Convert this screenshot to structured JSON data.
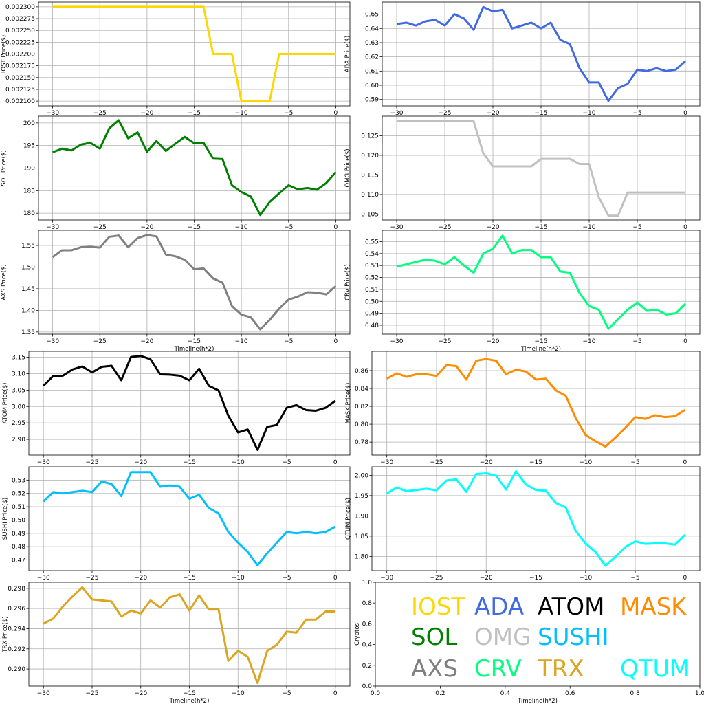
{
  "chart_data": [
    {
      "type": "line",
      "ylabel": "IOST Price($)",
      "xlabel": "",
      "color": "#ffd700",
      "xlim": [
        -31.5,
        1.5
      ],
      "ylim": [
        0.00209,
        0.00231
      ],
      "yticks": [
        0.0021,
        0.002125,
        0.00215,
        0.002175,
        0.0022,
        0.002225,
        0.00225,
        0.002275,
        0.0023
      ],
      "ytick_decimals": 6,
      "x": [
        -30,
        -29,
        -28,
        -27,
        -26,
        -25,
        -24,
        -23,
        -22,
        -21,
        -20,
        -19,
        -18,
        -17,
        -16,
        -15,
        -14,
        -13,
        -12,
        -11,
        -10,
        -9,
        -8,
        -7,
        -6,
        -5,
        -4,
        -3,
        -2,
        -1,
        0
      ],
      "values": [
        0.0023,
        0.0023,
        0.0023,
        0.0023,
        0.0023,
        0.0023,
        0.0023,
        0.0023,
        0.0023,
        0.0023,
        0.0023,
        0.0023,
        0.0023,
        0.0023,
        0.0023,
        0.0023,
        0.0023,
        0.0022,
        0.0022,
        0.0022,
        0.0021,
        0.0021,
        0.0021,
        0.0021,
        0.0022,
        0.0022,
        0.0022,
        0.0022,
        0.0022,
        0.0022,
        0.0022
      ]
    },
    {
      "type": "line",
      "ylabel": "ADA Price($)",
      "xlabel": "",
      "color": "#4169e1",
      "xlim": [
        -31.5,
        1.5
      ],
      "ylim": [
        0.5855,
        0.6585
      ],
      "yticks": [
        0.59,
        0.6,
        0.61,
        0.62,
        0.63,
        0.64,
        0.65
      ],
      "ytick_decimals": 2,
      "x": [
        -30,
        -29,
        -28,
        -27,
        -26,
        -25,
        -24,
        -23,
        -22,
        -21,
        -20,
        -19,
        -18,
        -17,
        -16,
        -15,
        -14,
        -13,
        -12,
        -11,
        -10,
        -9,
        -8,
        -7,
        -6,
        -5,
        -4,
        -3,
        -2,
        -1,
        0
      ],
      "values": [
        0.643,
        0.644,
        0.642,
        0.645,
        0.646,
        0.642,
        0.65,
        0.647,
        0.639,
        0.655,
        0.652,
        0.653,
        0.64,
        0.642,
        0.644,
        0.64,
        0.644,
        0.632,
        0.629,
        0.612,
        0.602,
        0.602,
        0.589,
        0.598,
        0.601,
        0.611,
        0.61,
        0.612,
        0.61,
        0.611,
        0.617
      ]
    },
    {
      "type": "line",
      "ylabel": "SOL Price($)",
      "xlabel": "",
      "color": "#008000",
      "xlim": [
        -31.5,
        1.5
      ],
      "ylim": [
        178.5,
        201.5
      ],
      "yticks": [
        180,
        185,
        190,
        195,
        200
      ],
      "ytick_decimals": 0,
      "x": [
        -30,
        -29,
        -28,
        -27,
        -26,
        -25,
        -24,
        -23,
        -22,
        -21,
        -20,
        -19,
        -18,
        -17,
        -16,
        -15,
        -14,
        -13,
        -12,
        -11,
        -10,
        -9,
        -8,
        -7,
        -6,
        -5,
        -4,
        -3,
        -2,
        -1,
        0
      ],
      "values": [
        193.5,
        194.3,
        193.9,
        195.2,
        195.6,
        194.3,
        198.8,
        200.6,
        196.6,
        197.9,
        193.6,
        196.0,
        193.8,
        195.4,
        196.9,
        195.5,
        195.6,
        192.1,
        192.0,
        186.2,
        184.7,
        183.7,
        179.6,
        182.5,
        184.4,
        186.2,
        185.3,
        185.6,
        185.2,
        186.7,
        189.1
      ]
    },
    {
      "type": "line",
      "ylabel": "OMG Price($)",
      "xlabel": "",
      "color": "#c0c0c0",
      "xlim": [
        -31.5,
        1.5
      ],
      "ylim": [
        0.1035,
        0.13
      ],
      "yticks": [
        0.105,
        0.11,
        0.115,
        0.12,
        0.125
      ],
      "ytick_decimals": 3,
      "x": [
        -30,
        -29,
        -28,
        -27,
        -26,
        -25,
        -24,
        -23,
        -22,
        -21,
        -20,
        -19,
        -18,
        -17,
        -16,
        -15,
        -14,
        -13,
        -12,
        -11,
        -10,
        -9,
        -8,
        -7,
        -6,
        -5,
        -4,
        -3,
        -2,
        -1,
        0
      ],
      "values": [
        0.1287,
        0.1287,
        0.1287,
        0.1287,
        0.1287,
        0.1287,
        0.1287,
        0.1287,
        0.1287,
        0.1205,
        0.1172,
        0.1172,
        0.1172,
        0.1172,
        0.1172,
        0.1191,
        0.1191,
        0.1191,
        0.1191,
        0.1178,
        0.1178,
        0.1093,
        0.1046,
        0.1046,
        0.1105,
        0.1105,
        0.1105,
        0.1105,
        0.1105,
        0.1105,
        0.1105
      ]
    },
    {
      "type": "line",
      "ylabel": "AXS Price($)",
      "xlabel": "Timeline(h*2)",
      "color": "#808080",
      "xlim": [
        -31.5,
        1.5
      ],
      "ylim": [
        1.345,
        1.585
      ],
      "yticks": [
        1.35,
        1.4,
        1.45,
        1.5,
        1.55
      ],
      "ytick_decimals": 2,
      "x": [
        -30,
        -29,
        -28,
        -27,
        -26,
        -25,
        -24,
        -23,
        -22,
        -21,
        -20,
        -19,
        -18,
        -17,
        -16,
        -15,
        -14,
        -13,
        -12,
        -11,
        -10,
        -9,
        -8,
        -7,
        -6,
        -5,
        -4,
        -3,
        -2,
        -1,
        0
      ],
      "values": [
        1.523,
        1.539,
        1.539,
        1.546,
        1.547,
        1.545,
        1.57,
        1.573,
        1.546,
        1.567,
        1.574,
        1.571,
        1.529,
        1.525,
        1.517,
        1.495,
        1.497,
        1.474,
        1.464,
        1.41,
        1.39,
        1.384,
        1.356,
        1.378,
        1.404,
        1.425,
        1.432,
        1.442,
        1.441,
        1.437,
        1.456
      ]
    },
    {
      "type": "line",
      "ylabel": "CRV Price($)",
      "xlabel": "Timeline(h*2)",
      "color": "#00ff7f",
      "xlim": [
        -31.5,
        1.5
      ],
      "ylim": [
        0.4725,
        0.5595
      ],
      "yticks": [
        0.48,
        0.49,
        0.5,
        0.51,
        0.52,
        0.53,
        0.54,
        0.55
      ],
      "ytick_decimals": 2,
      "x": [
        -30,
        -29,
        -28,
        -27,
        -26,
        -25,
        -24,
        -23,
        -22,
        -21,
        -20,
        -19,
        -18,
        -17,
        -16,
        -15,
        -14,
        -13,
        -12,
        -11,
        -10,
        -9,
        -8,
        -7,
        -6,
        -5,
        -4,
        -3,
        -2,
        -1,
        0
      ],
      "values": [
        0.529,
        0.531,
        0.533,
        0.535,
        0.534,
        0.531,
        0.537,
        0.53,
        0.524,
        0.54,
        0.544,
        0.555,
        0.54,
        0.543,
        0.543,
        0.537,
        0.537,
        0.525,
        0.524,
        0.507,
        0.496,
        0.493,
        0.477,
        0.485,
        0.493,
        0.499,
        0.492,
        0.493,
        0.489,
        0.49,
        0.498
      ]
    },
    {
      "type": "line",
      "ylabel": "ATOM  Price($)",
      "xlabel": "",
      "color": "#000000",
      "xlim": [
        -31.5,
        1.5
      ],
      "ylim": [
        2.852,
        3.168
      ],
      "yticks": [
        2.9,
        2.95,
        3.0,
        3.05,
        3.1,
        3.15
      ],
      "ytick_decimals": 2,
      "x": [
        -30,
        -29,
        -28,
        -27,
        -26,
        -25,
        -24,
        -23,
        -22,
        -21,
        -20,
        -19,
        -18,
        -17,
        -16,
        -15,
        -14,
        -13,
        -12,
        -11,
        -10,
        -9,
        -8,
        -7,
        -6,
        -5,
        -4,
        -3,
        -2,
        -1,
        0
      ],
      "values": [
        3.063,
        3.093,
        3.094,
        3.113,
        3.122,
        3.104,
        3.121,
        3.124,
        3.08,
        3.151,
        3.154,
        3.144,
        3.098,
        3.097,
        3.094,
        3.08,
        3.115,
        3.063,
        3.049,
        2.972,
        2.921,
        2.93,
        2.868,
        2.938,
        2.944,
        2.996,
        3.004,
        2.989,
        2.987,
        2.996,
        3.017
      ]
    },
    {
      "type": "line",
      "ylabel": "MASK  Price($)",
      "xlabel": "",
      "color": "#ff8c00",
      "xlim": [
        -31.5,
        1.5
      ],
      "ylim": [
        0.7655,
        0.8815
      ],
      "yticks": [
        0.78,
        0.8,
        0.82,
        0.84,
        0.86
      ],
      "ytick_decimals": 2,
      "x": [
        -30,
        -29,
        -28,
        -27,
        -26,
        -25,
        -24,
        -23,
        -22,
        -21,
        -20,
        -19,
        -18,
        -17,
        -16,
        -15,
        -14,
        -13,
        -12,
        -11,
        -10,
        -9,
        -8,
        -7,
        -6,
        -5,
        -4,
        -3,
        -2,
        -1,
        0
      ],
      "values": [
        0.851,
        0.857,
        0.853,
        0.856,
        0.856,
        0.854,
        0.866,
        0.865,
        0.85,
        0.871,
        0.873,
        0.871,
        0.856,
        0.861,
        0.859,
        0.85,
        0.851,
        0.838,
        0.832,
        0.807,
        0.788,
        0.781,
        0.775,
        0.785,
        0.796,
        0.808,
        0.806,
        0.81,
        0.808,
        0.809,
        0.816
      ]
    },
    {
      "type": "line",
      "ylabel": "SUSHI  Price($)",
      "xlabel": "",
      "color": "#00bfff",
      "xlim": [
        -31.5,
        1.5
      ],
      "ylim": [
        0.462,
        0.54
      ],
      "yticks": [
        0.47,
        0.48,
        0.49,
        0.5,
        0.51,
        0.52,
        0.53
      ],
      "ytick_decimals": 2,
      "x": [
        -30,
        -29,
        -28,
        -27,
        -26,
        -25,
        -24,
        -23,
        -22,
        -21,
        -20,
        -19,
        -18,
        -17,
        -16,
        -15,
        -14,
        -13,
        -12,
        -11,
        -10,
        -9,
        -8,
        -7,
        -6,
        -5,
        -4,
        -3,
        -2,
        -1,
        0
      ],
      "values": [
        0.514,
        0.521,
        0.52,
        0.521,
        0.522,
        0.521,
        0.529,
        0.527,
        0.518,
        0.536,
        0.536,
        0.536,
        0.525,
        0.526,
        0.525,
        0.516,
        0.519,
        0.509,
        0.505,
        0.491,
        0.483,
        0.476,
        0.466,
        0.475,
        0.483,
        0.491,
        0.49,
        0.491,
        0.49,
        0.491,
        0.495
      ]
    },
    {
      "type": "line",
      "ylabel": "QTUM Price($)",
      "xlabel": "",
      "color": "#00ffff",
      "xlim": [
        -31.5,
        1.5
      ],
      "ylim": [
        1.765,
        2.021
      ],
      "yticks": [
        1.8,
        1.85,
        1.9,
        1.95,
        2.0
      ],
      "ytick_decimals": 2,
      "x": [
        -30,
        -29,
        -28,
        -27,
        -26,
        -25,
        -24,
        -23,
        -22,
        -21,
        -20,
        -19,
        -18,
        -17,
        -16,
        -15,
        -14,
        -13,
        -12,
        -11,
        -10,
        -9,
        -8,
        -7,
        -6,
        -5,
        -4,
        -3,
        -2,
        -1,
        0
      ],
      "values": [
        1.955,
        1.97,
        1.961,
        1.964,
        1.967,
        1.963,
        1.987,
        1.99,
        1.959,
        2.003,
        2.005,
        1.999,
        1.965,
        2.01,
        1.977,
        1.964,
        1.962,
        1.932,
        1.921,
        1.863,
        1.832,
        1.811,
        1.777,
        1.799,
        1.823,
        1.837,
        1.831,
        1.832,
        1.832,
        1.829,
        1.853
      ]
    },
    {
      "type": "line",
      "ylabel": "TRX Price($)",
      "xlabel": "Timeline(h*2)",
      "color": "#daa520",
      "xlim": [
        -31.5,
        1.5
      ],
      "ylim": [
        0.2883,
        0.2986
      ],
      "yticks": [
        0.29,
        0.292,
        0.294,
        0.296,
        0.298
      ],
      "ytick_decimals": 3,
      "x": [
        -30,
        -29,
        -28,
        -27,
        -26,
        -25,
        -24,
        -23,
        -22,
        -21,
        -20,
        -19,
        -18,
        -17,
        -16,
        -15,
        -14,
        -13,
        -12,
        -11,
        -10,
        -9,
        -8,
        -7,
        -6,
        -5,
        -4,
        -3,
        -2,
        -1,
        0
      ],
      "values": [
        0.2945,
        0.295,
        0.2962,
        0.2972,
        0.2981,
        0.2969,
        0.2968,
        0.2967,
        0.2952,
        0.2958,
        0.2955,
        0.2968,
        0.2961,
        0.2971,
        0.2974,
        0.2958,
        0.2973,
        0.2959,
        0.2959,
        0.2908,
        0.2918,
        0.2912,
        0.2886,
        0.2918,
        0.2924,
        0.2937,
        0.2936,
        0.2949,
        0.2949,
        0.2957,
        0.2957
      ]
    },
    {
      "type": "table",
      "ylabel": "Cryptos",
      "xlabel": "Timeline(h*2)",
      "xlim": [
        0,
        1
      ],
      "ylim": [
        0,
        1
      ],
      "xticks": [
        0.0,
        0.2,
        0.4,
        0.6,
        0.8,
        1.0
      ],
      "yticks": [
        0.0,
        0.2,
        0.4,
        0.6,
        0.8,
        1.0
      ],
      "legend": [
        {
          "name": "IOST",
          "color": "#ffd700"
        },
        {
          "name": "ADA",
          "color": "#4169e1"
        },
        {
          "name": "ATOM",
          "color": "#000000"
        },
        {
          "name": "MASK",
          "color": "#ff8c00"
        },
        {
          "name": "SOL",
          "color": "#008000"
        },
        {
          "name": "OMG",
          "color": "#c0c0c0"
        },
        {
          "name": "SUSHI",
          "color": "#00bfff"
        },
        {
          "name": "AXS",
          "color": "#808080"
        },
        {
          "name": "CRV",
          "color": "#00ff7f"
        },
        {
          "name": "TRX",
          "color": "#daa520"
        },
        {
          "name": "QTUM",
          "color": "#00ffff"
        }
      ]
    }
  ]
}
